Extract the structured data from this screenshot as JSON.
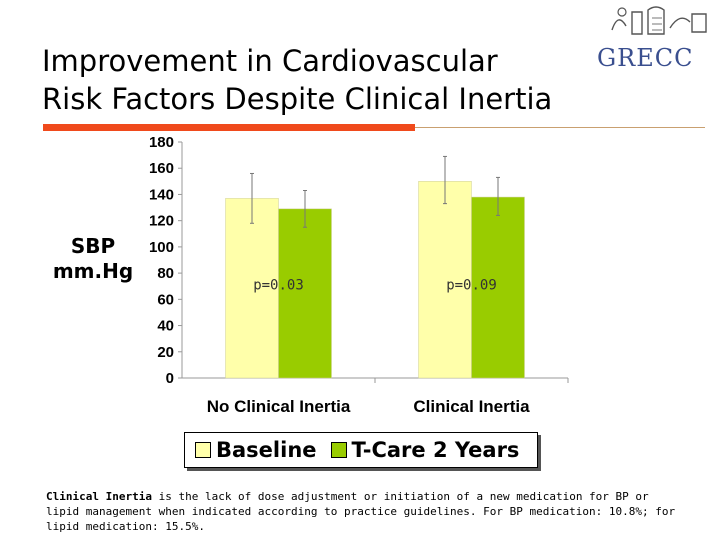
{
  "slide": {
    "title_line1": "Improvement in Cardiovascular",
    "title_line2": "Risk Factors Despite Clinical Inertia",
    "logo_text": "GRECC",
    "ylabel_line1": "SBP",
    "ylabel_line2": "mm.Hg",
    "footer_term": "Clinical Inertia",
    "footer_text": " is the lack of dose adjustment or initiation of a new medication for BP or lipid management when indicated according to practice guidelines. For BP medication: 10.8%; for lipid medication: 15.5%."
  },
  "colors": {
    "baseline": "#ffffaa",
    "tcare": "#99cc00",
    "accent_rule": "#f04a1c"
  },
  "chart_data": {
    "type": "bar",
    "categories": [
      "No Clinical Inertia",
      "Clinical Inertia"
    ],
    "series": [
      {
        "name": "Baseline",
        "values": [
          137,
          150
        ],
        "error_low": [
          118,
          133
        ],
        "error_high": [
          156,
          169
        ]
      },
      {
        "name": "T-Care 2 Years",
        "values": [
          129,
          138
        ],
        "error_low": [
          115,
          124
        ],
        "error_high": [
          143,
          153
        ]
      }
    ],
    "annotations": [
      "p=0.03",
      "p=0.09"
    ],
    "ylim": [
      0,
      180
    ],
    "yticks": [
      0,
      20,
      40,
      60,
      80,
      100,
      120,
      140,
      160,
      180
    ],
    "grid": false,
    "legend_position": "bottom"
  }
}
